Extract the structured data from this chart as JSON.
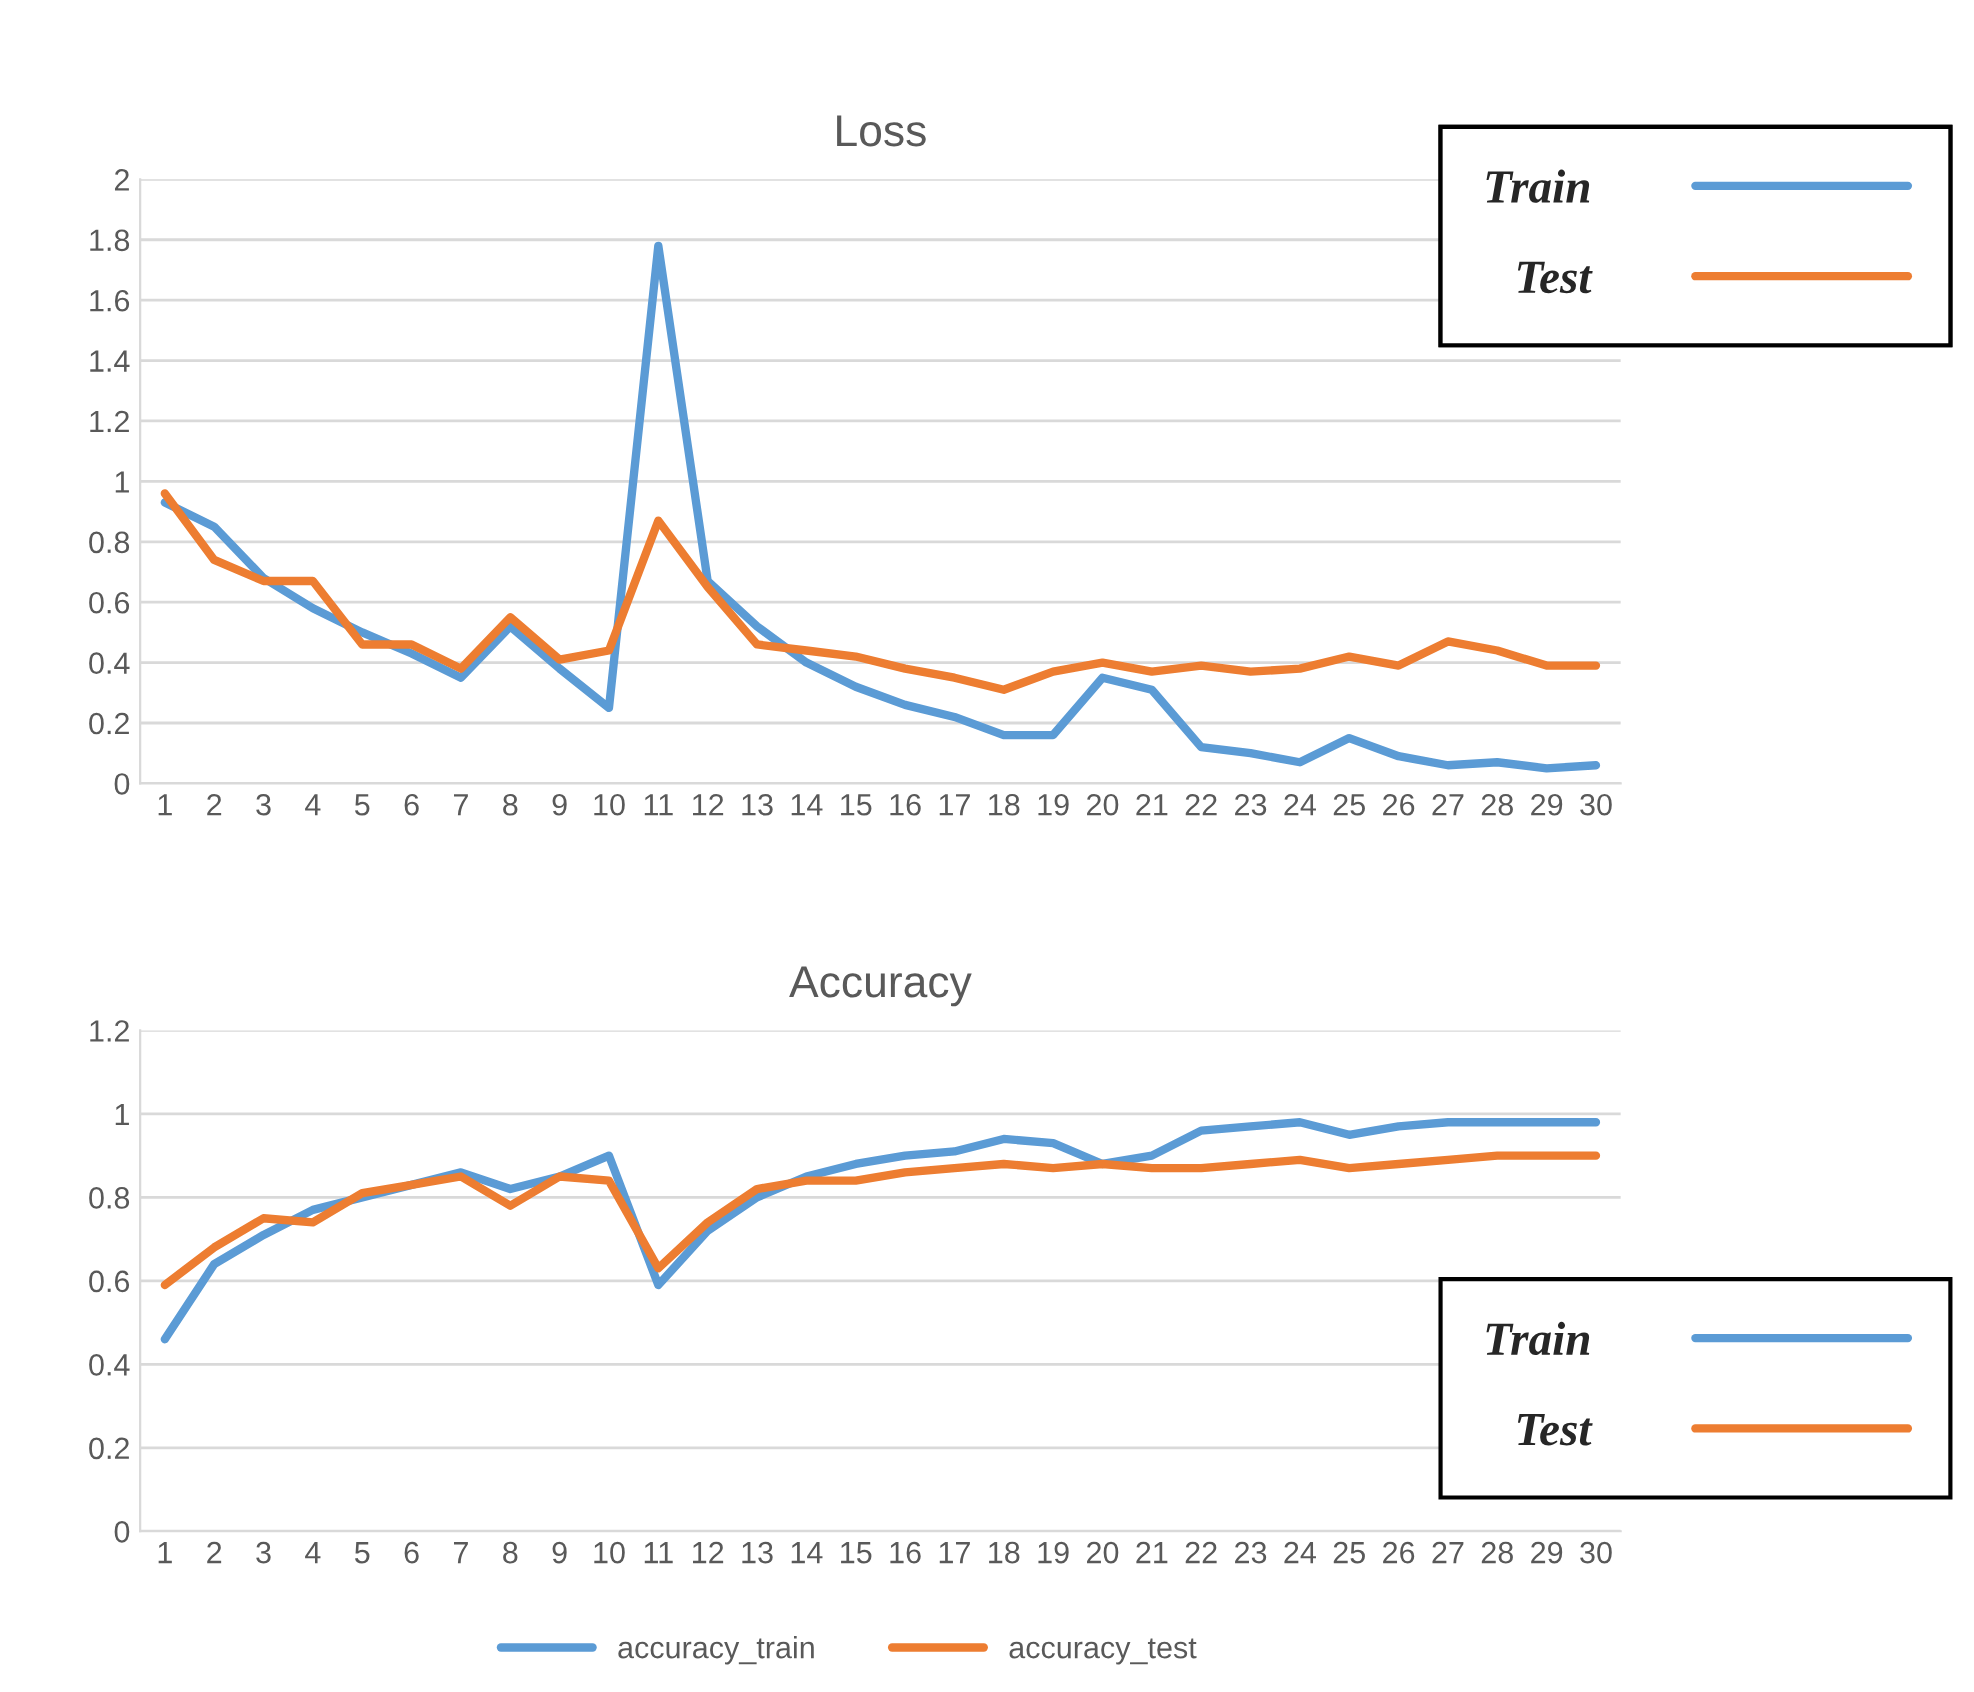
{
  "chart_data": [
    {
      "type": "line",
      "title": "Loss",
      "categories": [
        "1",
        "2",
        "3",
        "4",
        "5",
        "6",
        "7",
        "8",
        "9",
        "10",
        "11",
        "12",
        "13",
        "14",
        "15",
        "16",
        "17",
        "18",
        "19",
        "20",
        "21",
        "22",
        "23",
        "24",
        "25",
        "26",
        "27",
        "28",
        "29",
        "30"
      ],
      "ylim": [
        0,
        2
      ],
      "yticks": [
        0,
        0.2,
        0.4,
        0.6,
        0.8,
        1,
        1.2,
        1.4,
        1.6,
        1.8,
        2
      ],
      "grid": "y",
      "legend": "top right",
      "series": [
        {
          "name": "Train",
          "color": "#5b9bd5",
          "values": [
            0.93,
            0.85,
            0.68,
            0.58,
            0.5,
            0.43,
            0.35,
            0.52,
            0.38,
            0.25,
            1.78,
            0.67,
            0.52,
            0.4,
            0.32,
            0.26,
            0.22,
            0.16,
            0.16,
            0.35,
            0.31,
            0.12,
            0.1,
            0.07,
            0.15,
            0.09,
            0.06,
            0.07,
            0.05,
            0.06
          ]
        },
        {
          "name": "Test",
          "color": "#ed7d31",
          "values": [
            0.96,
            0.74,
            0.67,
            0.67,
            0.46,
            0.46,
            0.38,
            0.55,
            0.41,
            0.44,
            0.87,
            0.65,
            0.46,
            0.44,
            0.42,
            0.38,
            0.35,
            0.31,
            0.37,
            0.4,
            0.37,
            0.39,
            0.37,
            0.38,
            0.42,
            0.39,
            0.47,
            0.44,
            0.39,
            0.39
          ]
        }
      ]
    },
    {
      "type": "line",
      "title": "Accuracy",
      "categories": [
        "1",
        "2",
        "3",
        "4",
        "5",
        "6",
        "7",
        "8",
        "9",
        "10",
        "11",
        "12",
        "13",
        "14",
        "15",
        "16",
        "17",
        "18",
        "19",
        "20",
        "21",
        "22",
        "23",
        "24",
        "25",
        "26",
        "27",
        "28",
        "29",
        "30"
      ],
      "ylim": [
        0,
        1.2
      ],
      "yticks": [
        0,
        0.2,
        0.4,
        0.6,
        0.8,
        1,
        1.2
      ],
      "grid": "y",
      "legend": "bottom right",
      "annotations": [
        "accuracy_train",
        "accuracy_test"
      ],
      "series": [
        {
          "name": "Train",
          "color": "#5b9bd5",
          "values": [
            0.46,
            0.64,
            0.71,
            0.77,
            0.8,
            0.83,
            0.86,
            0.82,
            0.85,
            0.9,
            0.59,
            0.72,
            0.8,
            0.85,
            0.88,
            0.9,
            0.91,
            0.94,
            0.93,
            0.88,
            0.9,
            0.96,
            0.97,
            0.98,
            0.95,
            0.97,
            0.98,
            0.98,
            0.98,
            0.98
          ]
        },
        {
          "name": "Test",
          "color": "#ed7d31",
          "values": [
            0.59,
            0.68,
            0.75,
            0.74,
            0.81,
            0.83,
            0.85,
            0.78,
            0.85,
            0.84,
            0.63,
            0.74,
            0.82,
            0.84,
            0.84,
            0.86,
            0.87,
            0.88,
            0.87,
            0.88,
            0.87,
            0.87,
            0.88,
            0.89,
            0.87,
            0.88,
            0.89,
            0.9,
            0.9,
            0.9
          ]
        }
      ]
    }
  ]
}
